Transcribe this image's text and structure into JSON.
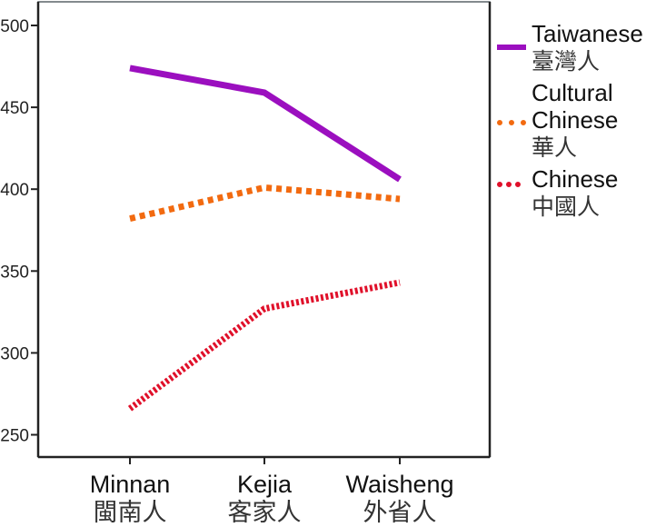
{
  "chart_data": {
    "type": "line",
    "title": "",
    "xlabel": "",
    "ylabel": "",
    "categories": [
      "Minnan",
      "Kejia",
      "Waisheng"
    ],
    "categories_zh": [
      "閩南人",
      "客家人",
      "外省人"
    ],
    "ylim": [
      235,
      515
    ],
    "yticks": [
      250,
      300,
      350,
      400,
      450,
      500
    ],
    "grid": false,
    "legend_position": "right",
    "series": [
      {
        "name": "Taiwanese",
        "name_zh": "臺灣人",
        "color": "#9b0fbf",
        "style": "solid",
        "values": [
          474,
          459,
          406
        ]
      },
      {
        "name": "Cultural Chinese",
        "name_zh": "華人",
        "color": "#f26a10",
        "style": "dotted",
        "values": [
          382,
          401,
          394
        ]
      },
      {
        "name": "Chinese",
        "name_zh": "中國人",
        "color": "#e0102a",
        "style": "fine-dotted",
        "values": [
          266,
          327,
          343
        ]
      }
    ]
  },
  "legend": {
    "items": [
      {
        "lines": [
          "Taiwanese"
        ],
        "zh": "臺灣人"
      },
      {
        "lines": [
          "Cultural",
          "Chinese"
        ],
        "zh": "華人"
      },
      {
        "lines": [
          "Chinese"
        ],
        "zh": "中國人"
      }
    ]
  }
}
